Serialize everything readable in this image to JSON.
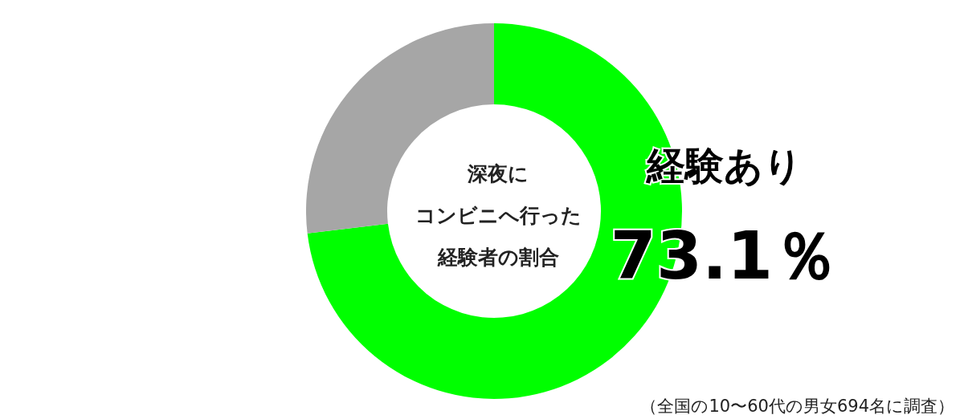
{
  "chart_data": {
    "type": "donut",
    "title": "深夜にコンビニへ行った経験者の割合",
    "categories": [
      "経験あり",
      null
    ],
    "values": [
      73.1,
      26.9
    ],
    "colors": [
      "#00ff00",
      "#a6a6a6"
    ],
    "value_labels": [
      "73.1％",
      null
    ],
    "annotations": [
      "（全国の10〜60代の男女694名に調査）"
    ]
  }
}
